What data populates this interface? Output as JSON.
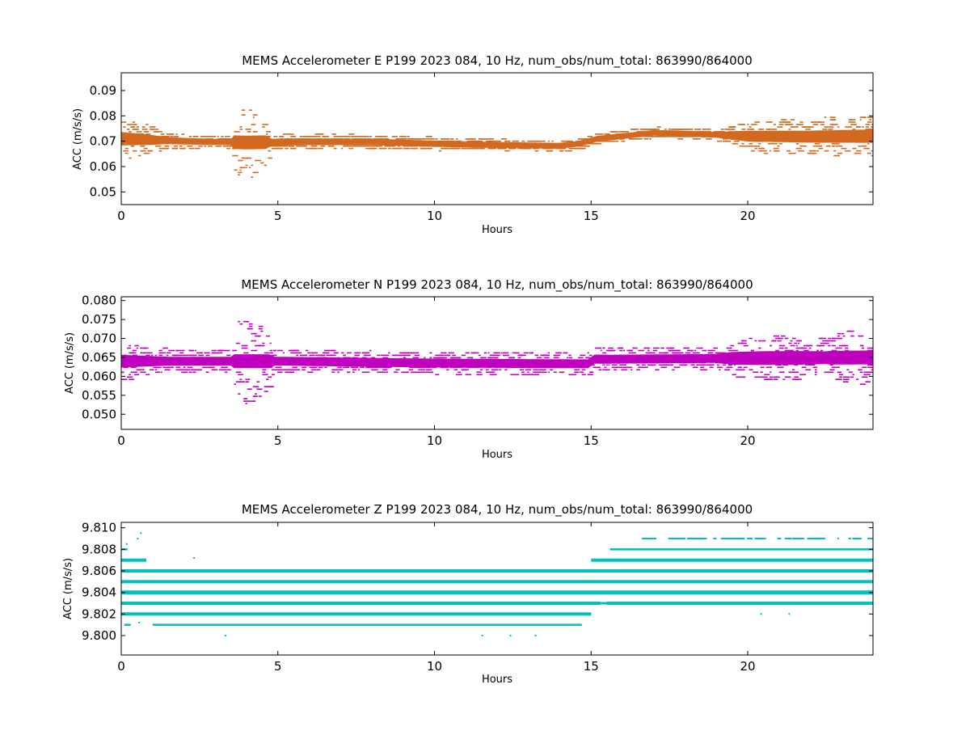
{
  "figure": {
    "background": "#ffffff"
  },
  "chart_data": [
    {
      "type": "scatter",
      "title": "MEMS Accelerometer E P199 2023 084, 10 Hz, num_obs/num_total: 863990/864000",
      "xlabel": "Hours",
      "ylabel": "ACC (m/s/s)",
      "xlim": [
        0,
        24
      ],
      "ylim": [
        0.045,
        0.097
      ],
      "xticks": [
        0,
        5,
        10,
        15,
        20
      ],
      "xtick_labels": [
        "0",
        "5",
        "10",
        "15",
        "20"
      ],
      "yticks": [
        0.05,
        0.06,
        0.07,
        0.08,
        0.09
      ],
      "ytick_labels": [
        "0.05",
        "0.06",
        "0.07",
        "0.08",
        "0.09"
      ],
      "color": "#d2691e",
      "grid": false,
      "series": [
        {
          "trend": [
            [
              0,
              0.071
            ],
            [
              2,
              0.07
            ],
            [
              4,
              0.0695
            ],
            [
              6,
              0.0698
            ],
            [
              8,
              0.0697
            ],
            [
              10,
              0.069
            ],
            [
              12,
              0.0685
            ],
            [
              14,
              0.0682
            ],
            [
              14.6,
              0.069
            ],
            [
              15.2,
              0.071
            ],
            [
              16,
              0.072
            ],
            [
              17,
              0.0733
            ],
            [
              18,
              0.073
            ],
            [
              19,
              0.0725
            ],
            [
              20,
              0.072
            ],
            [
              22,
              0.0718
            ],
            [
              24,
              0.072
            ]
          ],
          "spread": [
            [
              0,
              0.008
            ],
            [
              0.8,
              0.006
            ],
            [
              1.5,
              0.003
            ],
            [
              3.5,
              0.002
            ],
            [
              3.6,
              0.012
            ],
            [
              4.0,
              0.015
            ],
            [
              4.5,
              0.012
            ],
            [
              4.8,
              0.003
            ],
            [
              14,
              0.002
            ],
            [
              19,
              0.002
            ],
            [
              19.5,
              0.004
            ],
            [
              20,
              0.006
            ],
            [
              24,
              0.008
            ]
          ]
        }
      ]
    },
    {
      "type": "scatter",
      "title": "MEMS Accelerometer N P199 2023 084, 10 Hz, num_obs/num_total: 863990/864000",
      "xlabel": "Hours",
      "ylabel": "ACC (m/s/s)",
      "xlim": [
        0,
        24
      ],
      "ylim": [
        0.046,
        0.081
      ],
      "xticks": [
        0,
        5,
        10,
        15,
        20
      ],
      "xtick_labels": [
        "0",
        "5",
        "10",
        "15",
        "20"
      ],
      "yticks": [
        0.05,
        0.055,
        0.06,
        0.065,
        0.07,
        0.075,
        0.08
      ],
      "ytick_labels": [
        "0.050",
        "0.055",
        "0.060",
        "0.065",
        "0.070",
        "0.075",
        "0.080"
      ],
      "color": "#bf00bf",
      "grid": false,
      "series": [
        {
          "trend": [
            [
              0,
              0.064
            ],
            [
              5,
              0.064
            ],
            [
              10,
              0.0635
            ],
            [
              14.9,
              0.0633
            ],
            [
              15.1,
              0.0645
            ],
            [
              24,
              0.065
            ]
          ],
          "spread": [
            [
              0,
              0.005
            ],
            [
              1.5,
              0.003
            ],
            [
              3.5,
              0.003
            ],
            [
              3.6,
              0.01
            ],
            [
              4.0,
              0.012
            ],
            [
              4.6,
              0.008
            ],
            [
              4.9,
              0.003
            ],
            [
              19,
              0.003
            ],
            [
              19.5,
              0.005
            ],
            [
              21,
              0.006
            ],
            [
              22.5,
              0.005
            ],
            [
              23,
              0.007
            ],
            [
              24,
              0.007
            ]
          ]
        }
      ]
    },
    {
      "type": "scatter",
      "title": "MEMS Accelerometer Z P199 2023 084, 10 Hz, num_obs/num_total: 863990/864000",
      "xlabel": "Hours",
      "ylabel": "ACC (m/s/s)",
      "xlim": [
        0,
        24
      ],
      "ylim": [
        9.7982,
        9.8105
      ],
      "xticks": [
        0,
        5,
        10,
        15,
        20
      ],
      "xtick_labels": [
        "0",
        "5",
        "10",
        "15",
        "20"
      ],
      "yticks": [
        9.8,
        9.802,
        9.804,
        9.806,
        9.808,
        9.81
      ],
      "ytick_labels": [
        "9.800",
        "9.802",
        "9.804",
        "9.806",
        "9.808",
        "9.810"
      ],
      "color": "#00bfbf",
      "grid": false,
      "series": [
        {
          "levels": [
            {
              "y": 9.801,
              "x": [
                [
                  0.1,
                  0.3
                ],
                [
                  1.0,
                  14.7
                ]
              ],
              "width": 2.5
            },
            {
              "y": 9.802,
              "x": [
                [
                  0,
                  15.0
                ]
              ],
              "width": 4
            },
            {
              "y": 9.803,
              "x": [
                [
                  0,
                  15.3
                ],
                [
                  15.5,
                  24
                ]
              ],
              "width": 4,
              "sparse_after": 15.3
            },
            {
              "y": 9.804,
              "x": [
                [
                  0,
                  24
                ]
              ],
              "width": 5
            },
            {
              "y": 9.805,
              "x": [
                [
                  0,
                  24
                ]
              ],
              "width": 4
            },
            {
              "y": 9.806,
              "x": [
                [
                  0,
                  24
                ]
              ],
              "width": 4
            },
            {
              "y": 9.807,
              "x": [
                [
                  0,
                  0.8
                ],
                [
                  15.0,
                  24
                ]
              ],
              "width": 4
            },
            {
              "y": 9.808,
              "x": [
                [
                  0,
                  0.2
                ],
                [
                  15.6,
                  24
                ]
              ],
              "width": 2.5
            },
            {
              "y": 9.809,
              "x": [
                [
                  16.5,
                  24
                ]
              ],
              "width": 1.8,
              "sparse": true
            }
          ]
        }
      ]
    }
  ]
}
